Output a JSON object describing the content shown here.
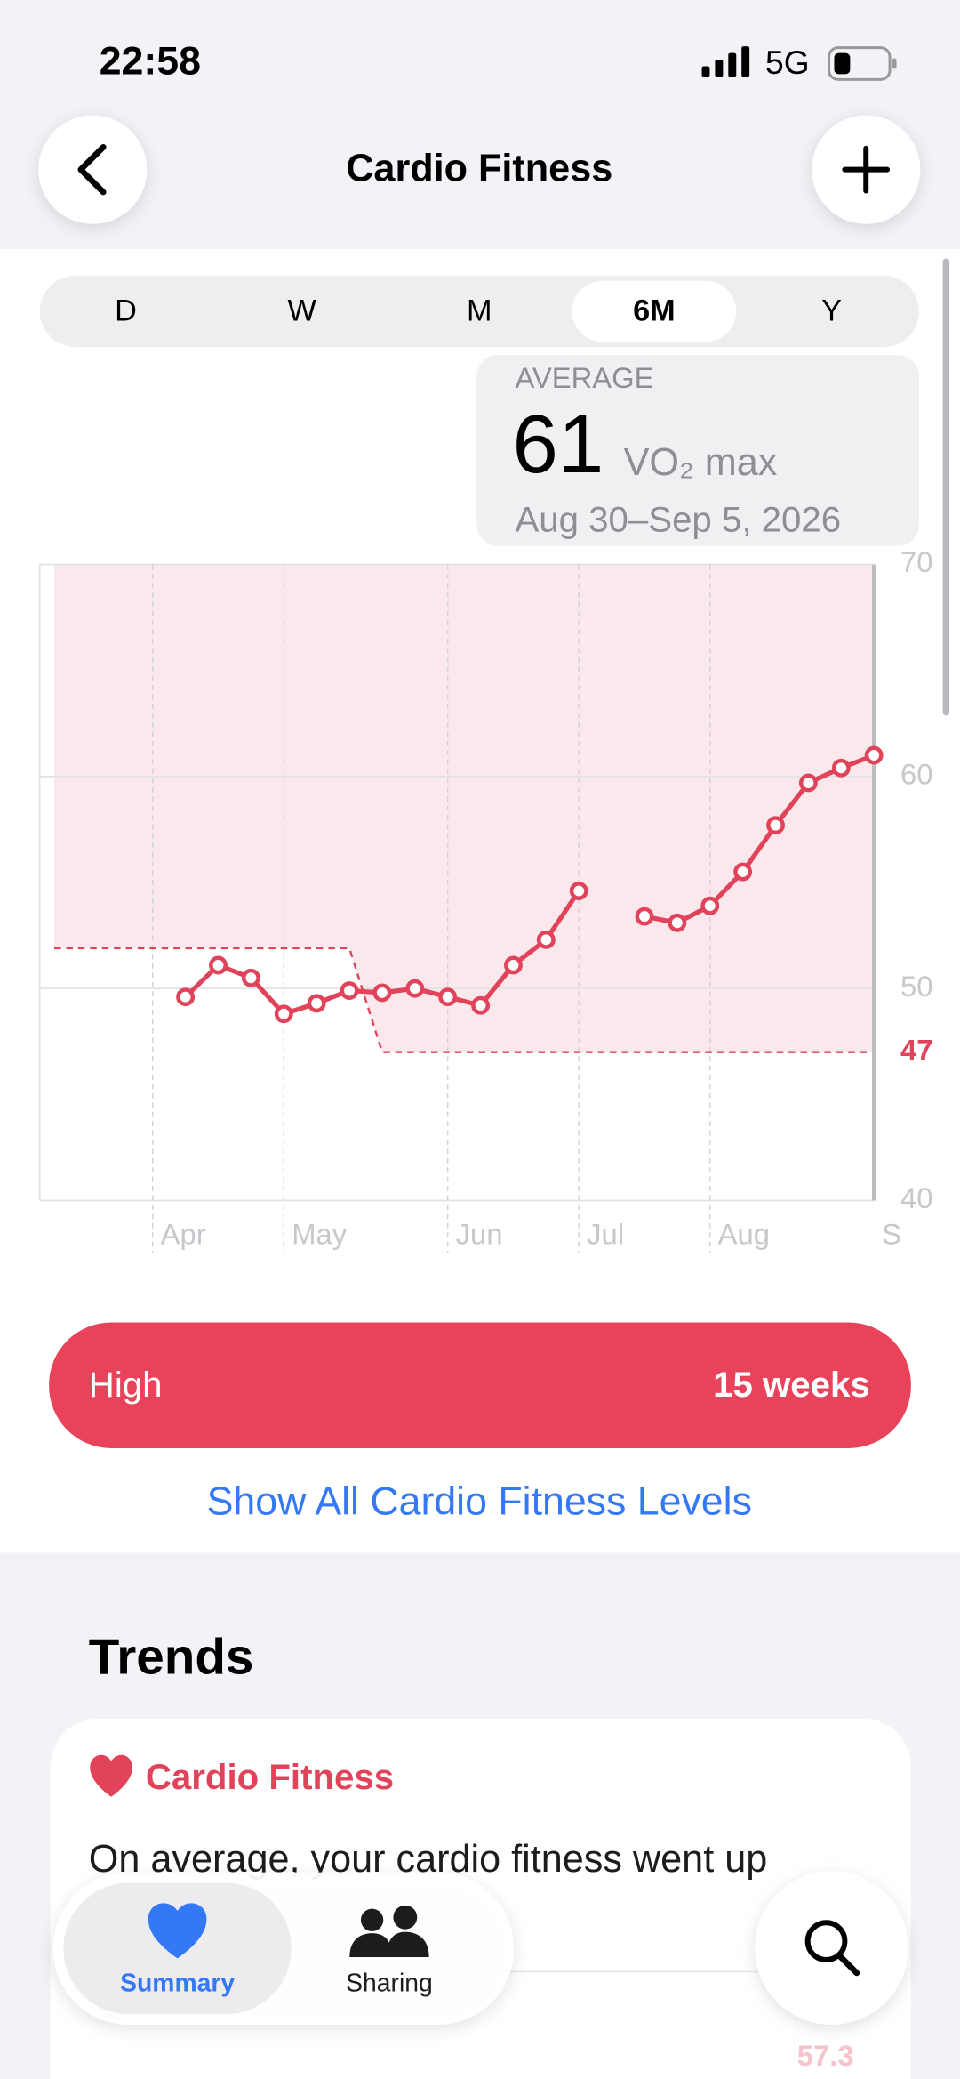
{
  "status_bar": {
    "time": "22:58",
    "network": "5G"
  },
  "nav": {
    "title": "Cardio Fitness"
  },
  "segments": {
    "options": [
      "D",
      "W",
      "M",
      "6M",
      "Y"
    ],
    "selected": "6M"
  },
  "summary": {
    "label": "AVERAGE",
    "value": "61",
    "unit": "VO₂ max",
    "date_range": "Aug 30–Sep 5, 2026"
  },
  "chart_data": {
    "type": "line",
    "categories": [
      null,
      null,
      null,
      "Apr",
      null,
      null,
      null,
      "May",
      null,
      null,
      null,
      null,
      "Jun",
      null,
      null,
      null,
      "Jul",
      null,
      null,
      null,
      "Aug",
      null,
      null,
      null,
      null,
      "S"
    ],
    "values": [
      null,
      null,
      null,
      null,
      49.6,
      51.1,
      50.5,
      48.8,
      49.3,
      49.9,
      49.8,
      50.0,
      49.6,
      49.2,
      51.1,
      52.3,
      54.6,
      null,
      53.4,
      53.1,
      53.9,
      55.5,
      57.7,
      59.7,
      60.4,
      61
    ],
    "color": "#e0435a",
    "threshold": [
      51.9,
      51.9,
      51.9,
      51.9,
      51.9,
      51.9,
      51.9,
      51.9,
      51.9,
      51.9,
      47,
      47,
      47,
      47,
      47,
      47,
      47,
      47,
      47,
      47,
      47,
      47,
      47,
      47,
      47,
      47
    ],
    "band_color": "#fbe8ec",
    "ylim": [
      40,
      70
    ],
    "yticks": [
      40,
      50,
      60,
      70
    ],
    "grid": true
  },
  "level": {
    "name": "High",
    "duration": "15 weeks"
  },
  "link": "Show All Cardio Fitness Levels",
  "trends": {
    "title": "Trends",
    "card_title": "Cardio Fitness",
    "card_text": "On average, your cardio fitness went up"
  },
  "tab_bar": {
    "tabs": [
      "Summary",
      "Sharing"
    ]
  },
  "peek_value": "57.3"
}
